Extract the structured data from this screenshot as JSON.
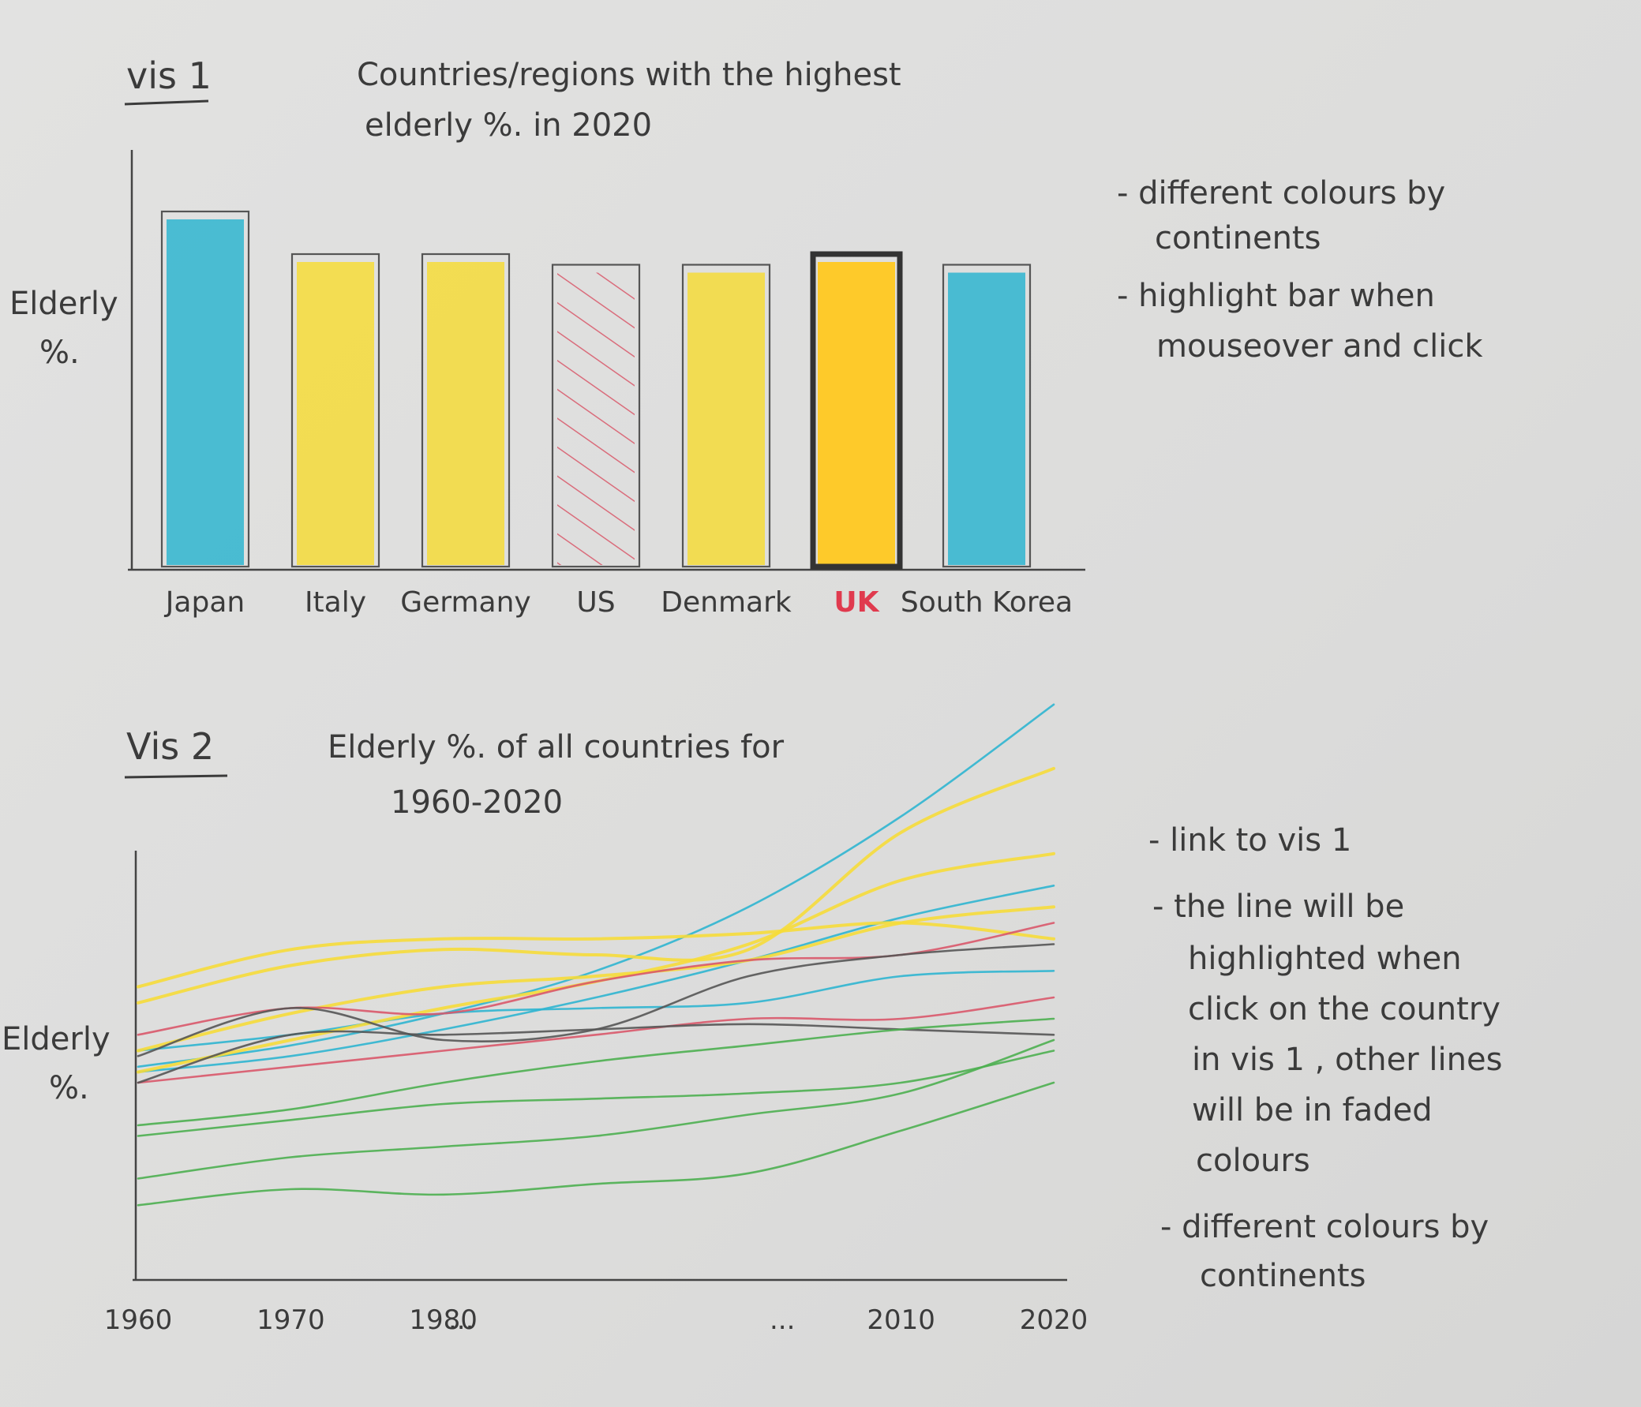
{
  "colors": {
    "asia": "#2fb5d0",
    "europe": "#f6dc3a",
    "uk_fill": "#ffc820",
    "north_america": "#d9586a",
    "highlight_text": "#e03a4e",
    "ink": "#3b3b3b",
    "green": "#4caf50",
    "gray": "#555555"
  },
  "vis1": {
    "tag": "vis 1",
    "title_line1": "Countries/regions with the highest",
    "title_line2": "elderly %. in 2020",
    "ylabel_line1": "Elderly",
    "ylabel_line2": "%.",
    "notes": [
      {
        "line1": "- different colours by",
        "line2": "continents"
      },
      {
        "line1": "- highlight bar when",
        "line2": "mouseover and click"
      }
    ]
  },
  "vis2": {
    "tag": "Vis 2",
    "title_line1": "Elderly %. of all countries for",
    "title_line2": "1960-2020",
    "ylabel_line1": "Elderly",
    "ylabel_line2": "%.",
    "ellipsis_left": "...",
    "ellipsis_right": "...",
    "notes": [
      "- link to vis 1",
      "- the line will be",
      "highlighted when",
      "click on the country",
      "in vis 1 , other lines",
      "will be in faded",
      "colours",
      "- different colours by",
      "continents"
    ]
  },
  "chart_data": [
    {
      "type": "bar",
      "title": "Countries/regions with the highest elderly %. in 2020",
      "ylabel": "Elderly %.",
      "categories": [
        "Japan",
        "Italy",
        "Germany",
        "US",
        "Denmark",
        "UK",
        "South Korea"
      ],
      "values": [
        100,
        88,
        88,
        85,
        85,
        88,
        85
      ],
      "fill": [
        "asia",
        "europe",
        "europe",
        "north_america_hatched",
        "europe",
        "uk_fill",
        "asia"
      ],
      "highlighted": "UK",
      "ylim": [
        0,
        120
      ],
      "grid": false,
      "legend": "none"
    },
    {
      "type": "line",
      "title": "Elderly %. of all countries for 1960-2020",
      "ylabel": "Elderly %.",
      "x_tick_labels": [
        "1960",
        "1970",
        "1980",
        "2010",
        "2020"
      ],
      "x": [
        1960,
        1970,
        1980,
        1990,
        2000,
        2010,
        2020
      ],
      "ylim": [
        0,
        10
      ],
      "grid": false,
      "series": [
        {
          "continent": "asia",
          "values": [
            3.9,
            4.3,
            4.9,
            5.7,
            6.9,
            8.6,
            10.7
          ]
        },
        {
          "continent": "asia",
          "values": [
            3.8,
            4.1,
            4.6,
            5.2,
            5.9,
            6.7,
            7.3
          ]
        },
        {
          "continent": "asia",
          "values": [
            4.2,
            4.5,
            4.9,
            5.0,
            5.1,
            5.6,
            5.7
          ]
        },
        {
          "continent": "europe",
          "values": [
            5.1,
            5.8,
            6.1,
            6.0,
            6.1,
            8.3,
            9.5
          ]
        },
        {
          "continent": "europe",
          "values": [
            5.4,
            6.1,
            6.3,
            6.3,
            6.4,
            6.6,
            6.3
          ]
        },
        {
          "continent": "europe",
          "values": [
            3.8,
            4.4,
            5.0,
            5.5,
            6.2,
            7.4,
            7.9
          ]
        },
        {
          "continent": "europe",
          "values": [
            4.2,
            4.9,
            5.4,
            5.6,
            5.9,
            6.6,
            6.9
          ]
        },
        {
          "continent": "north_america",
          "values": [
            4.5,
            5.0,
            4.9,
            5.5,
            5.9,
            6.0,
            6.6
          ]
        },
        {
          "continent": "north_america",
          "values": [
            3.6,
            3.9,
            4.2,
            4.5,
            4.8,
            4.8,
            5.2
          ]
        },
        {
          "continent": "gray",
          "values": [
            4.1,
            5.0,
            4.4,
            4.6,
            5.6,
            6.0,
            6.2
          ]
        },
        {
          "continent": "gray",
          "values": [
            3.6,
            4.5,
            4.5,
            4.6,
            4.7,
            4.6,
            4.5
          ]
        },
        {
          "continent": "green",
          "values": [
            2.8,
            3.1,
            3.6,
            4.0,
            4.3,
            4.6,
            4.8
          ]
        },
        {
          "continent": "green",
          "values": [
            2.6,
            2.9,
            3.2,
            3.3,
            3.4,
            3.6,
            4.2
          ]
        },
        {
          "continent": "green",
          "values": [
            1.8,
            2.2,
            2.4,
            2.6,
            3.0,
            3.4,
            4.4
          ]
        },
        {
          "continent": "green",
          "values": [
            1.3,
            1.6,
            1.5,
            1.7,
            1.9,
            2.7,
            3.6
          ]
        }
      ]
    }
  ]
}
